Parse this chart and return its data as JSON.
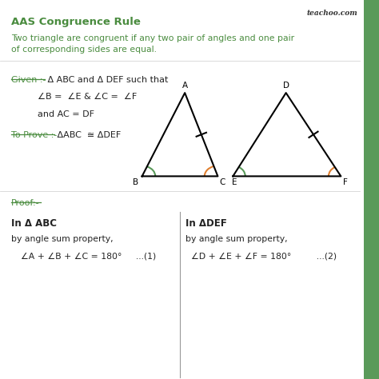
{
  "title": "AAS Congruence Rule",
  "subtitle": "Two triangle are congruent if any two pair of angles and one pair\nof corresponding sides are equal.",
  "given_label": "Given :-",
  "given_text1": " Δ ABC and Δ DEF such that",
  "given_text2": "∠B =  ∠E & ∠C =  ∠F",
  "given_text3": "and AC = DF",
  "toprove_label": "To Prove :-",
  "toprove_text": " ΔABC  ≅ ΔDEF",
  "proof_label": "Proof:-",
  "col1_header": "In Δ ABC",
  "col1_line1": "by angle sum property,",
  "col1_line2": "∠A + ∠B + ∠C = 180°     ...(1)",
  "col2_header": "In ΔDEF",
  "col2_line1": "by angle sum property,",
  "col2_line2": "∠D + ∠E + ∠F = 180°         ...(2)",
  "watermark": "teachoo.com",
  "bg_color": "#ffffff",
  "green_color": "#4a8c3f",
  "dark_color": "#222222",
  "green_arc_color": "#5a9a5a",
  "orange_arc_color": "#e08030",
  "right_bar_color": "#5a9a5a"
}
